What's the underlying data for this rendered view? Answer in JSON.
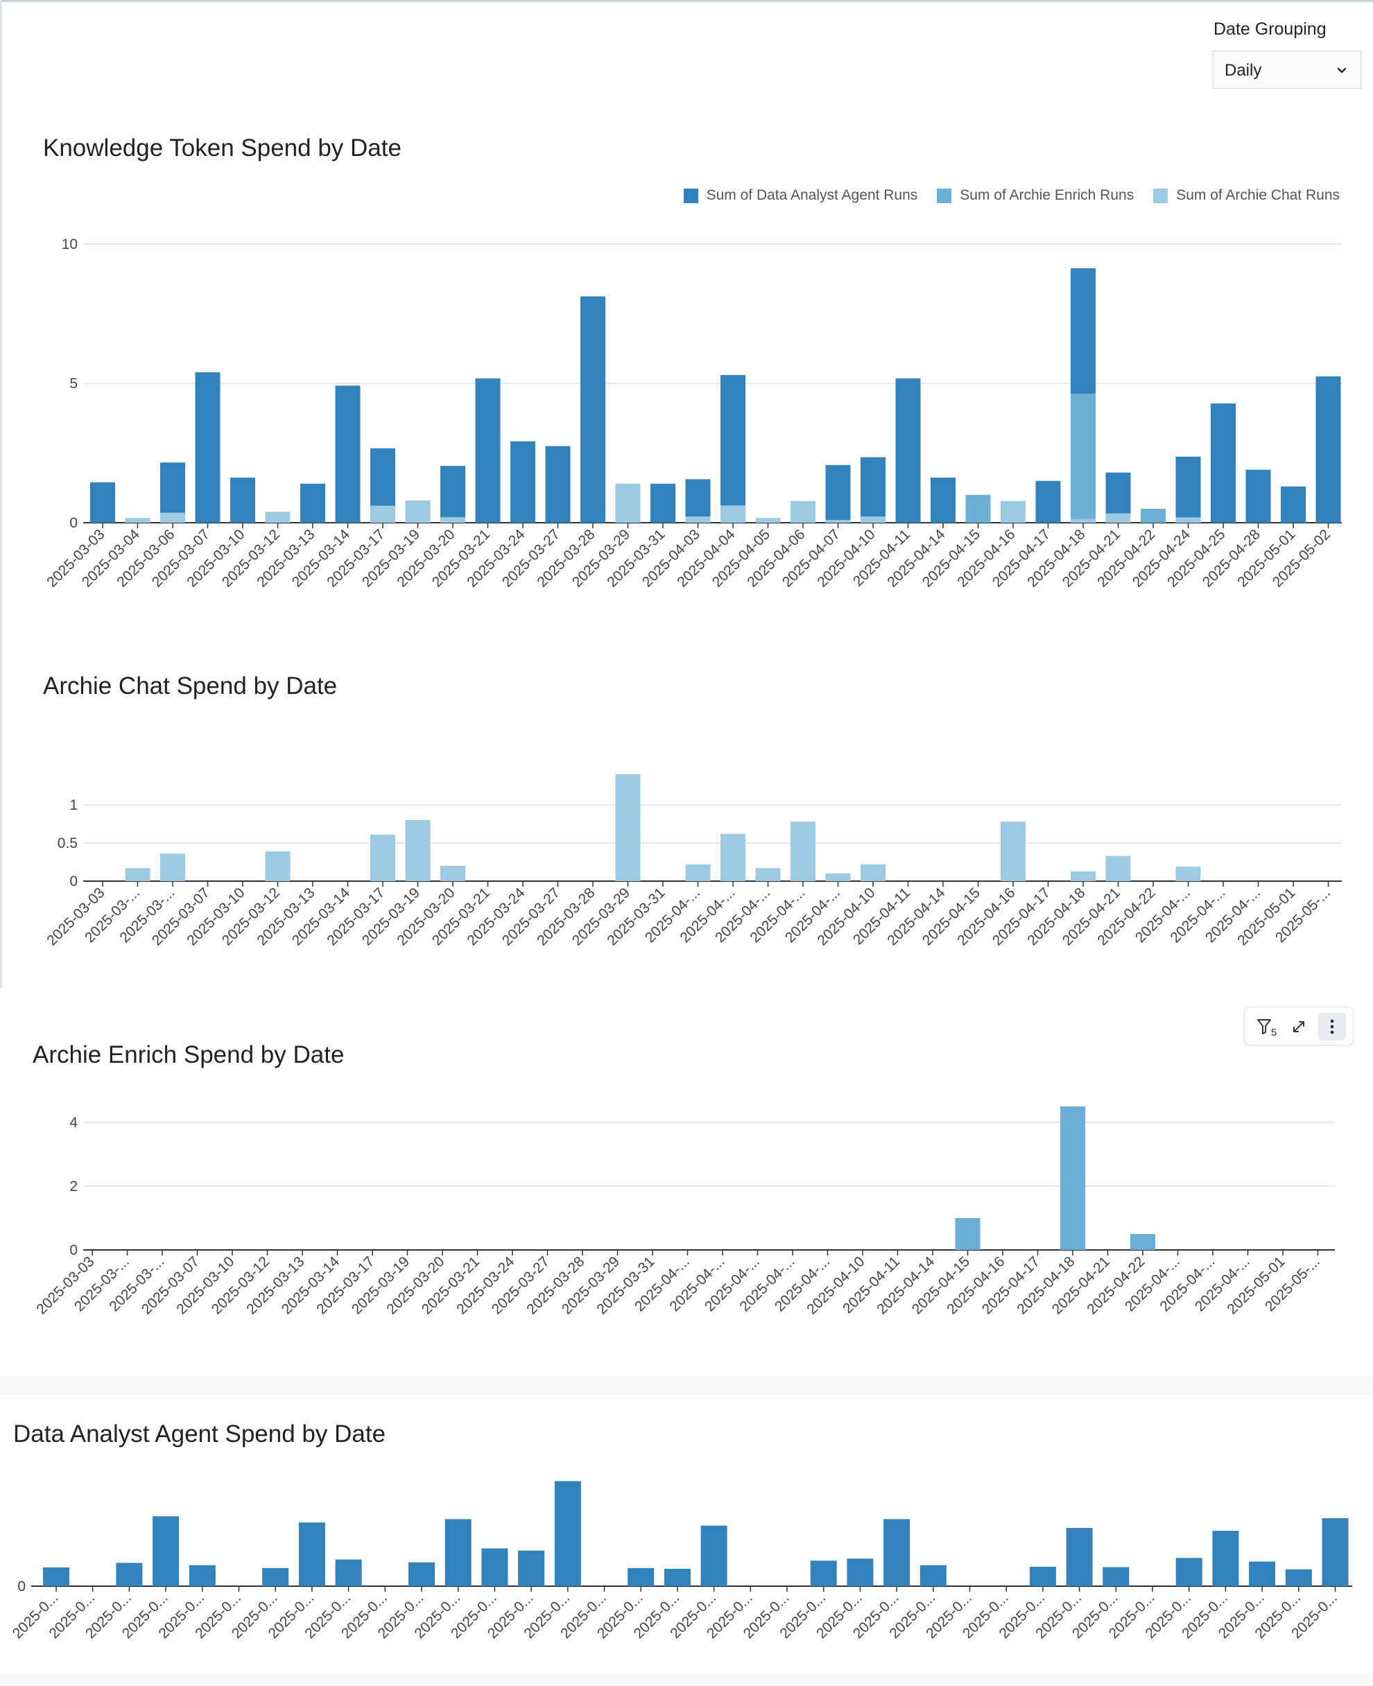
{
  "controls": {
    "date_grouping_label": "Date Grouping",
    "date_grouping_value": "Daily"
  },
  "colors": {
    "data_analyst": "#3182bd",
    "archie_enrich": "#6baed6",
    "archie_chat": "#9ecae1",
    "gridline": "#d6e1ea",
    "axis": "#333333",
    "tick_text": "#444444"
  },
  "toolbar": {
    "filter_count": "5"
  },
  "chart_data": [
    {
      "id": "knowledge",
      "type": "bar",
      "stacked": true,
      "title": "Knowledge Token Spend by Date",
      "legend_position": "top-right",
      "categories": [
        "2025-03-03",
        "2025-03-04",
        "2025-03-06",
        "2025-03-07",
        "2025-03-10",
        "2025-03-12",
        "2025-03-13",
        "2025-03-14",
        "2025-03-17",
        "2025-03-19",
        "2025-03-20",
        "2025-03-21",
        "2025-03-24",
        "2025-03-27",
        "2025-03-28",
        "2025-03-29",
        "2025-03-31",
        "2025-04-03",
        "2025-04-04",
        "2025-04-05",
        "2025-04-06",
        "2025-04-07",
        "2025-04-10",
        "2025-04-11",
        "2025-04-14",
        "2025-04-15",
        "2025-04-16",
        "2025-04-17",
        "2025-04-18",
        "2025-04-21",
        "2025-04-22",
        "2025-04-24",
        "2025-04-25",
        "2025-04-28",
        "2025-05-01",
        "2025-05-02"
      ],
      "tick_labels": [
        "2025-03-03",
        "2025-03-04",
        "2025-03-06",
        "2025-03-07",
        "2025-03-10",
        "2025-03-12",
        "2025-03-13",
        "2025-03-14",
        "2025-03-17",
        "2025-03-19",
        "2025-03-20",
        "2025-03-21",
        "2025-03-24",
        "2025-03-27",
        "2025-03-28",
        "2025-03-29",
        "2025-03-31",
        "2025-04-03",
        "2025-04-04",
        "2025-04-05",
        "2025-04-06",
        "2025-04-07",
        "2025-04-10",
        "2025-04-11",
        "2025-04-14",
        "2025-04-15",
        "2025-04-16",
        "2025-04-17",
        "2025-04-18",
        "2025-04-21",
        "2025-04-22",
        "2025-04-24",
        "2025-04-25",
        "2025-04-28",
        "2025-05-01",
        "2025-05-02"
      ],
      "series": [
        {
          "name": "Sum of Archie Chat Runs",
          "color": "#9ecae1",
          "values": [
            0,
            0.17,
            0.36,
            0,
            0,
            0.39,
            0,
            0,
            0.61,
            0.8,
            0.2,
            0,
            0,
            0,
            0,
            1.4,
            0,
            0.22,
            0.62,
            0.17,
            0.78,
            0.1,
            0.22,
            0,
            0,
            0,
            0.78,
            0,
            0.13,
            0.33,
            0,
            0.19,
            0,
            0,
            0,
            0
          ]
        },
        {
          "name": "Sum of Archie Enrich Runs",
          "color": "#6baed6",
          "values": [
            0,
            0,
            0,
            0,
            0,
            0,
            0,
            0,
            0,
            0,
            0,
            0,
            0,
            0,
            0,
            0,
            0,
            0,
            0,
            0,
            0,
            0,
            0,
            0,
            0,
            1.0,
            0,
            0,
            4.5,
            0,
            0.5,
            0,
            0,
            0,
            0,
            0
          ]
        },
        {
          "name": "Sum of Data Analyst Agent Runs",
          "color": "#3182bd",
          "values": [
            1.45,
            0,
            1.8,
            5.4,
            1.62,
            0,
            1.4,
            4.92,
            2.06,
            0,
            1.84,
            5.18,
            2.92,
            2.75,
            8.12,
            0,
            1.4,
            1.34,
            4.68,
            0,
            0,
            1.97,
            2.13,
            5.18,
            1.62,
            0,
            0,
            1.5,
            4.5,
            1.47,
            0,
            2.18,
            4.28,
            1.9,
            1.3,
            5.25
          ]
        }
      ],
      "legend": [
        "Sum of Data Analyst Agent Runs",
        "Sum of Archie Enrich Runs",
        "Sum of Archie Chat Runs"
      ],
      "xlabel": "",
      "ylabel": "",
      "ylim": [
        0,
        10
      ],
      "yticks": [
        0,
        5,
        10
      ],
      "ytick_labels": [
        "0",
        "5",
        "10"
      ]
    },
    {
      "id": "chat",
      "type": "bar",
      "title": "Archie Chat Spend by Date",
      "categories": [
        "2025-03-03",
        "2025-03-04",
        "2025-03-06",
        "2025-03-07",
        "2025-03-10",
        "2025-03-12",
        "2025-03-13",
        "2025-03-14",
        "2025-03-17",
        "2025-03-19",
        "2025-03-20",
        "2025-03-21",
        "2025-03-24",
        "2025-03-27",
        "2025-03-28",
        "2025-03-29",
        "2025-03-31",
        "2025-04-03",
        "2025-04-04",
        "2025-04-05",
        "2025-04-06",
        "2025-04-07",
        "2025-04-10",
        "2025-04-11",
        "2025-04-14",
        "2025-04-15",
        "2025-04-16",
        "2025-04-17",
        "2025-04-18",
        "2025-04-21",
        "2025-04-22",
        "2025-04-24",
        "2025-04-25",
        "2025-04-28",
        "2025-05-01",
        "2025-05-02"
      ],
      "tick_labels": [
        "2025-03-03",
        "2025-03-...",
        "2025-03-...",
        "2025-03-07",
        "2025-03-10",
        "2025-03-12",
        "2025-03-13",
        "2025-03-14",
        "2025-03-17",
        "2025-03-19",
        "2025-03-20",
        "2025-03-21",
        "2025-03-24",
        "2025-03-27",
        "2025-03-28",
        "2025-03-29",
        "2025-03-31",
        "2025-04-...",
        "2025-04-...",
        "2025-04-...",
        "2025-04-...",
        "2025-04-...",
        "2025-04-10",
        "2025-04-11",
        "2025-04-14",
        "2025-04-15",
        "2025-04-16",
        "2025-04-17",
        "2025-04-18",
        "2025-04-21",
        "2025-04-22",
        "2025-04-...",
        "2025-04-...",
        "2025-04-...",
        "2025-05-01",
        "2025-05-..."
      ],
      "series": [
        {
          "name": "Archie Chat",
          "color": "#9ecae1",
          "values": [
            0,
            0.17,
            0.36,
            0,
            0,
            0.39,
            0,
            0,
            0.61,
            0.8,
            0.2,
            0,
            0,
            0,
            0,
            1.4,
            0,
            0.22,
            0.62,
            0.17,
            0.78,
            0.1,
            0.22,
            0,
            0,
            0,
            0.78,
            0,
            0.13,
            0.33,
            0,
            0.19,
            0,
            0,
            0,
            0
          ]
        }
      ],
      "xlabel": "",
      "ylabel": "",
      "ylim": [
        0,
        1.5
      ],
      "yticks": [
        0,
        0.5,
        1
      ],
      "ytick_labels": [
        "0",
        "0.5",
        "1"
      ]
    },
    {
      "id": "enrich",
      "type": "bar",
      "title": "Archie Enrich Spend by Date",
      "categories": [
        "2025-03-03",
        "2025-03-04",
        "2025-03-06",
        "2025-03-07",
        "2025-03-10",
        "2025-03-12",
        "2025-03-13",
        "2025-03-14",
        "2025-03-17",
        "2025-03-19",
        "2025-03-20",
        "2025-03-21",
        "2025-03-24",
        "2025-03-27",
        "2025-03-28",
        "2025-03-29",
        "2025-03-31",
        "2025-04-03",
        "2025-04-04",
        "2025-04-05",
        "2025-04-06",
        "2025-04-07",
        "2025-04-10",
        "2025-04-11",
        "2025-04-14",
        "2025-04-15",
        "2025-04-16",
        "2025-04-17",
        "2025-04-18",
        "2025-04-21",
        "2025-04-22",
        "2025-04-24",
        "2025-04-25",
        "2025-04-28",
        "2025-05-01",
        "2025-05-02"
      ],
      "tick_labels": [
        "2025-03-03",
        "2025-03-...",
        "2025-03-...",
        "2025-03-07",
        "2025-03-10",
        "2025-03-12",
        "2025-03-13",
        "2025-03-14",
        "2025-03-17",
        "2025-03-19",
        "2025-03-20",
        "2025-03-21",
        "2025-03-24",
        "2025-03-27",
        "2025-03-28",
        "2025-03-29",
        "2025-03-31",
        "2025-04-...",
        "2025-04-...",
        "2025-04-...",
        "2025-04-...",
        "2025-04-...",
        "2025-04-10",
        "2025-04-11",
        "2025-04-14",
        "2025-04-15",
        "2025-04-16",
        "2025-04-17",
        "2025-04-18",
        "2025-04-21",
        "2025-04-22",
        "2025-04-...",
        "2025-04-...",
        "2025-04-...",
        "2025-05-01",
        "2025-05-..."
      ],
      "series": [
        {
          "name": "Archie Enrich",
          "color": "#6baed6",
          "values": [
            0,
            0,
            0,
            0,
            0,
            0,
            0,
            0,
            0,
            0,
            0,
            0,
            0,
            0,
            0,
            0,
            0,
            0,
            0,
            0,
            0,
            0,
            0,
            0,
            0,
            1.0,
            0,
            0,
            4.5,
            0,
            0.5,
            0,
            0,
            0,
            0,
            0
          ]
        }
      ],
      "xlabel": "",
      "ylabel": "",
      "ylim": [
        0,
        4.5
      ],
      "yticks": [
        0,
        2,
        4
      ],
      "ytick_labels": [
        "0",
        "2",
        "4"
      ]
    },
    {
      "id": "analyst",
      "type": "bar",
      "title": "Data Analyst Agent Spend by Date",
      "categories": [
        "2025-03-03",
        "2025-03-04",
        "2025-03-06",
        "2025-03-07",
        "2025-03-10",
        "2025-03-12",
        "2025-03-13",
        "2025-03-14",
        "2025-03-17",
        "2025-03-19",
        "2025-03-20",
        "2025-03-21",
        "2025-03-24",
        "2025-03-27",
        "2025-03-28",
        "2025-03-29",
        "2025-03-31",
        "2025-04-03",
        "2025-04-04",
        "2025-04-05",
        "2025-04-06",
        "2025-04-07",
        "2025-04-10",
        "2025-04-11",
        "2025-04-14",
        "2025-04-15",
        "2025-04-16",
        "2025-04-17",
        "2025-04-18",
        "2025-04-21",
        "2025-04-22",
        "2025-04-24",
        "2025-04-25",
        "2025-04-28",
        "2025-05-01",
        "2025-05-02"
      ],
      "tick_labels": [
        "2025-0...",
        "2025-0...",
        "2025-0...",
        "2025-0...",
        "2025-0...",
        "2025-0...",
        "2025-0...",
        "2025-0...",
        "2025-0...",
        "2025-0...",
        "2025-0...",
        "2025-0...",
        "2025-0...",
        "2025-0...",
        "2025-0...",
        "2025-0...",
        "2025-0...",
        "2025-0...",
        "2025-0...",
        "2025-0...",
        "2025-0...",
        "2025-0...",
        "2025-0...",
        "2025-0...",
        "2025-0...",
        "2025-0...",
        "2025-0...",
        "2025-0...",
        "2025-0...",
        "2025-0...",
        "2025-0...",
        "2025-0...",
        "2025-0...",
        "2025-0...",
        "2025-0...",
        "2025-0..."
      ],
      "series": [
        {
          "name": "Data Analyst Agent",
          "color": "#3182bd",
          "values": [
            1.45,
            0,
            1.8,
            5.4,
            1.62,
            0,
            1.4,
            4.92,
            2.06,
            0,
            1.84,
            5.18,
            2.92,
            2.75,
            8.12,
            0,
            1.4,
            1.34,
            4.68,
            0,
            0,
            1.97,
            2.13,
            5.18,
            1.62,
            0,
            0,
            1.5,
            4.5,
            1.47,
            0,
            2.18,
            4.28,
            1.9,
            1.3,
            5.25
          ]
        }
      ],
      "xlabel": "",
      "ylabel": "",
      "ylim": [
        0,
        9
      ],
      "yticks": [
        0
      ],
      "ytick_labels": [
        "0"
      ]
    }
  ]
}
